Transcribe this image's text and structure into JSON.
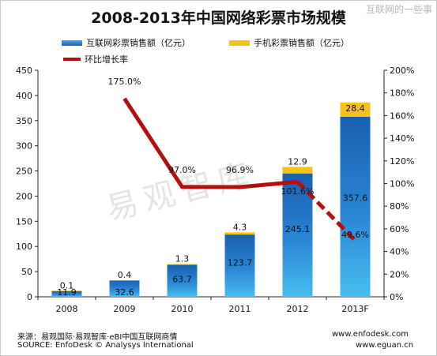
{
  "header": {
    "title": "2008-2013年中国网络彩票市场规模",
    "corner_watermark": "互联网的一些事"
  },
  "watermark_text": "易观智库",
  "footer": {
    "source_cn": "来源：易观国际·易观智库·eBI中国互联网商情",
    "source_en": "SOURCE: EnfoDesk © Analysys International",
    "url1": "www.enfodesk.com",
    "url2": "www.eguan.cn"
  },
  "colors": {
    "internet_series": "#1f74c9",
    "mobile_series": "#f5c21c",
    "growth_line": "#b30f0f"
  },
  "chart_data": {
    "type": "bar",
    "stacked": true,
    "categories": [
      "2008",
      "2009",
      "2010",
      "2011",
      "2012",
      "2013F"
    ],
    "series": [
      {
        "name": "互联网彩票销售额（亿元）",
        "values": [
          11.9,
          32.6,
          63.7,
          123.7,
          245.1,
          357.6
        ]
      },
      {
        "name": "手机彩票销售额（亿元）",
        "values": [
          0.1,
          0.4,
          1.3,
          4.3,
          12.9,
          28.4
        ]
      }
    ],
    "line_series": {
      "name": "环比增长率",
      "axis": "right",
      "values": [
        null,
        175.0,
        97.0,
        96.9,
        101.6,
        49.6
      ],
      "labels": [
        "",
        "175.0%",
        "97.0%",
        "96.9%",
        "101.6%",
        "49.6%"
      ],
      "last_segment_dashed": true
    },
    "y_left": {
      "min": 0,
      "max": 450,
      "step": 50,
      "ticks": [
        "0",
        "50",
        "100",
        "150",
        "200",
        "250",
        "300",
        "350",
        "400",
        "450"
      ]
    },
    "y_right": {
      "min": 0,
      "max": 200,
      "step": 20,
      "ticks": [
        "0%",
        "20%",
        "40%",
        "60%",
        "80%",
        "100%",
        "120%",
        "140%",
        "160%",
        "180%",
        "200%"
      ]
    },
    "legend_position": "top"
  }
}
